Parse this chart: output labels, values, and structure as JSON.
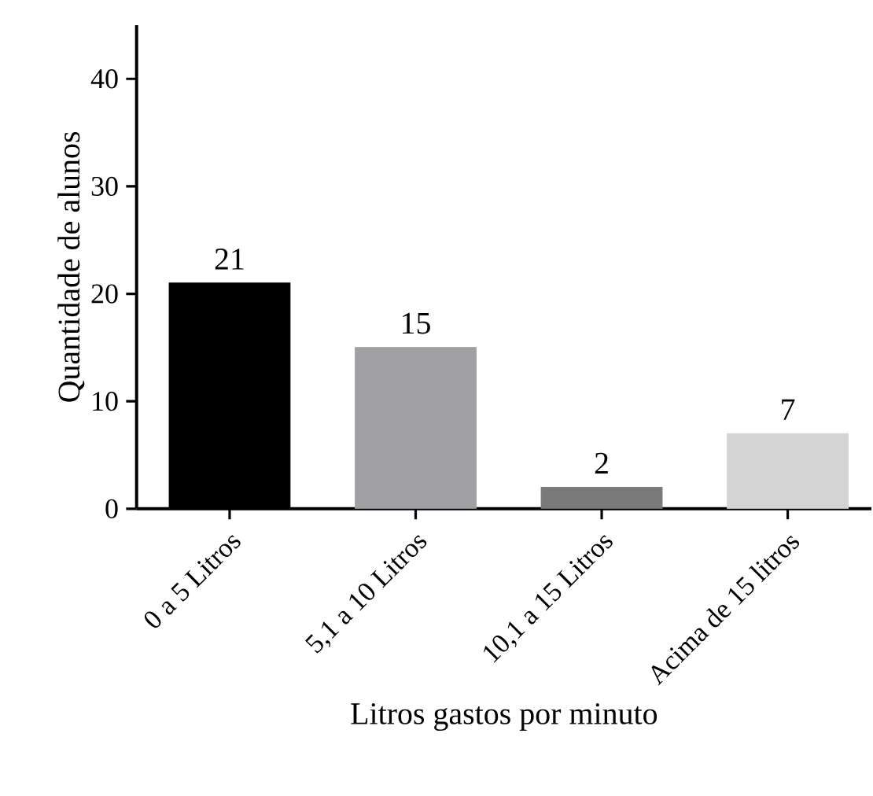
{
  "chart_data": {
    "type": "bar",
    "xlabel": "Litros gastos por minuto",
    "ylabel": "Quantidade de alunos",
    "categories": [
      "0 a 5 Litros",
      "5,1 a 10 Litros",
      "10,1 a 15 Litros",
      "Acima de 15 litros"
    ],
    "values": [
      21,
      15,
      2,
      7
    ],
    "colors": [
      "#000000",
      "#a0a0a4",
      "#7a7a7a",
      "#d4d4d4"
    ],
    "ylim": [
      0,
      45
    ],
    "yticks": [
      0,
      10,
      20,
      30,
      40
    ],
    "data_labels": true
  }
}
